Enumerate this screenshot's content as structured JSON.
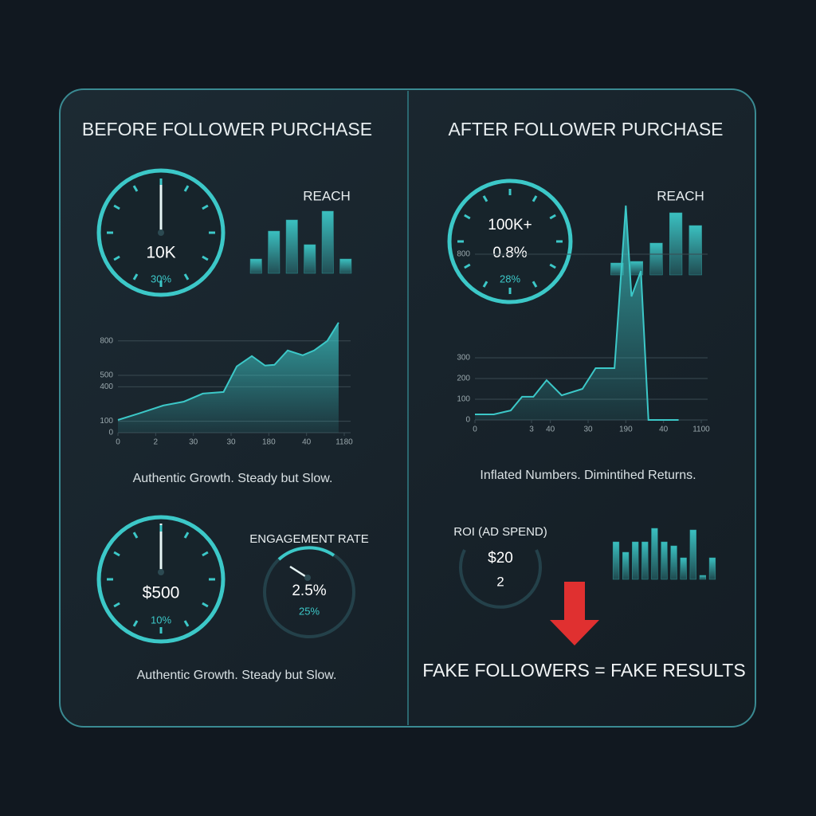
{
  "left": {
    "title": "BEFORE FOLLOWER PURCHASE",
    "reach_title": "REACH",
    "gauge_value": "10K",
    "gauge_sub": "30%",
    "caption": "Authentic Growth. Steady but Slow.",
    "spend_value": "$500",
    "spend_sub": "10%",
    "engagement_title": "ENGAGEMENT RATE",
    "engagement_value": "2.5%",
    "engagement_sub": "25%",
    "caption_bottom": "Authentic Growth. Steady but Slow."
  },
  "right": {
    "title": "AFTER FOLLOWER PURCHASE",
    "reach_title": "REACH",
    "gauge_value": "100K+",
    "gauge_rate": "0.8%",
    "gauge_sub": "28%",
    "caption": "Inflated Numbers. Dimintihed Returns.",
    "roi_title": "ROI (AD SPEND)",
    "roi_value": "$20",
    "roi_sub": "2",
    "conclusion": "FAKE FOLLOWERS = FAKE RESULTS"
  },
  "chart_data": [
    {
      "type": "bar",
      "categories": [
        null,
        null,
        null,
        null,
        null,
        null
      ],
      "values": [
        18,
        53,
        67,
        36,
        78,
        18
      ],
      "color": "#2f9a9a"
    },
    {
      "type": "line",
      "x": [
        0,
        1.1,
        2.4,
        3.5,
        4.5,
        5.6,
        6.3,
        7.1,
        7.8,
        8.3,
        9.0,
        9.8,
        10.4,
        11.1,
        11.7
      ],
      "values": [
        111,
        167,
        237,
        271,
        341,
        355,
        578,
        668,
        585,
        592,
        717,
        675,
        717,
        800,
        960
      ],
      "xlim": [
        0,
        12
      ],
      "ylim": [
        0,
        1000
      ],
      "xticks": [
        0,
        2,
        {
          "value": 4,
          "label": "30"
        },
        {
          "value": 6,
          "label": "30"
        },
        {
          "value": 8,
          "label": "180"
        },
        {
          "value": 10,
          "label": "40"
        },
        {
          "value": 12,
          "label": "1180"
        }
      ],
      "yticks": [
        0,
        100,
        400,
        500,
        800
      ],
      "grid": true,
      "color": "#3cc8c8"
    },
    {
      "type": "bar",
      "categories": [
        null,
        null,
        null,
        null,
        null
      ],
      "values": [
        15,
        17,
        40,
        78,
        62
      ],
      "color": "#2f9a9a"
    },
    {
      "type": "line",
      "x": [
        0,
        1.0,
        1.9,
        2.5,
        3.1,
        3.8,
        4.6,
        5.7,
        6.4,
        7.4,
        8.0,
        8.3,
        8.8,
        9.2,
        10.8
      ],
      "values": [
        27,
        27,
        46,
        112,
        112,
        192,
        119,
        150,
        250,
        250,
        1035,
        596,
        719,
        0,
        0
      ],
      "xlim": [
        0,
        12
      ],
      "ylim": [
        0,
        1100
      ],
      "xticks": [
        0,
        3,
        {
          "value": 4,
          "label": "40"
        },
        {
          "value": 6,
          "label": "30"
        },
        {
          "value": 8,
          "label": "190"
        },
        {
          "value": 10,
          "label": "40"
        },
        {
          "value": 12,
          "label": "1100"
        }
      ],
      "yticks": [
        0,
        100,
        200,
        300,
        800
      ],
      "grid": true,
      "color": "#3cc8c8"
    },
    {
      "type": "bar",
      "categories": [
        null,
        null,
        null,
        null,
        null,
        null,
        null,
        null,
        null,
        null,
        null
      ],
      "values": [
        47,
        34,
        47,
        47,
        64,
        47,
        42,
        27,
        62,
        5,
        27
      ],
      "color": "#2f9a9a"
    }
  ]
}
